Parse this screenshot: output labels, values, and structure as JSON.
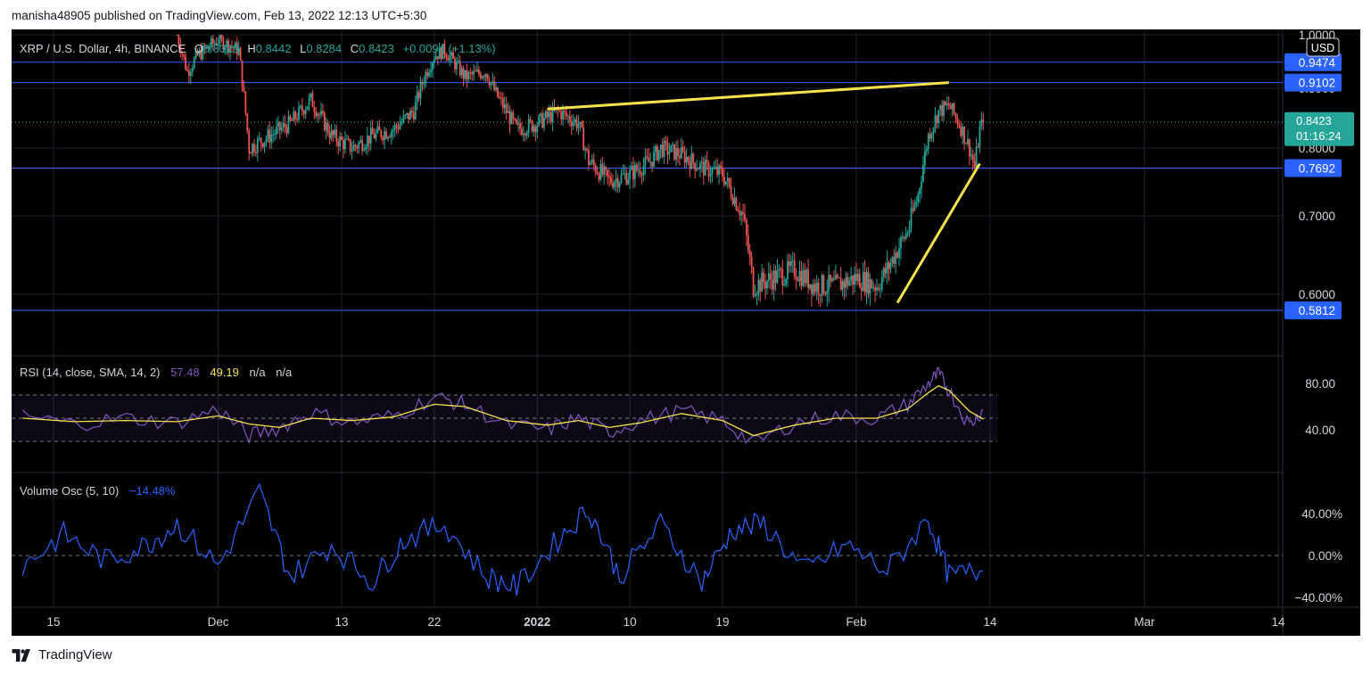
{
  "header": {
    "published_line": "manisha48905 published on TradingView.com, Feb 13, 2022 12:13 UTC+5:30"
  },
  "footer": {
    "brand": "TradingView"
  },
  "colors": {
    "background": "#000000",
    "up": "#26a69a",
    "down": "#ef5350",
    "level": "#2962ff",
    "trendline": "#f7e24b",
    "rsi": "#7e57c2",
    "rsi_ma": "#f7e24b",
    "volosc": "#2962ff",
    "axis_text": "#d1d4dc"
  },
  "chart_data": {
    "type": "candlestick",
    "symbol_line": {
      "symbol": "XRP / U.S. Dollar, 4h, BINANCE",
      "o_label": "O",
      "o_value": "0.8329",
      "h_label": "H",
      "h_value": "0.8442",
      "l_label": "L",
      "l_value": "0.8284",
      "c_label": "C",
      "c_value": "0.8423",
      "change": "+0.0094 (+1.13%)"
    },
    "currency_badge": "USD",
    "price_axis": {
      "range": [
        0.555,
        1.0
      ],
      "ticks": [
        {
          "label": "1.0000",
          "value": 1.0
        },
        {
          "label": "0.9000",
          "value": 0.9
        },
        {
          "label": "0.8000",
          "value": 0.8
        },
        {
          "label": "0.7000",
          "value": 0.7
        },
        {
          "label": "0.6000",
          "value": 0.6
        }
      ]
    },
    "horizontal_levels": [
      {
        "label": "0.9474",
        "value": 0.9474
      },
      {
        "label": "0.9102",
        "value": 0.9102
      },
      {
        "label": "0.7692",
        "value": 0.7692
      },
      {
        "label": "0.5812",
        "value": 0.5812
      }
    ],
    "last_price": {
      "label": "0.8423",
      "value": 0.8423,
      "countdown": "01:16:24"
    },
    "x_axis": {
      "range": [
        "2021-11-12",
        "2022-03-14"
      ],
      "ticks": [
        {
          "label": "15",
          "date": "2021-11-15",
          "bold": false
        },
        {
          "label": "Dec",
          "date": "2021-12-01",
          "bold": false
        },
        {
          "label": "13",
          "date": "2021-12-13",
          "bold": false
        },
        {
          "label": "22",
          "date": "2021-12-22",
          "bold": false
        },
        {
          "label": "2022",
          "date": "2022-01-01",
          "bold": true
        },
        {
          "label": "10",
          "date": "2022-01-10",
          "bold": false
        },
        {
          "label": "19",
          "date": "2022-01-19",
          "bold": false
        },
        {
          "label": "Feb",
          "date": "2022-02-01",
          "bold": false
        },
        {
          "label": "14",
          "date": "2022-02-14",
          "bold": false
        },
        {
          "label": "Mar",
          "date": "2022-03-01",
          "bold": false
        },
        {
          "label": "14",
          "date": "2022-03-14",
          "bold": false
        }
      ]
    },
    "price_path": [
      [
        "2021-11-12",
        1.0
      ],
      [
        "2021-11-27",
        1.0
      ],
      [
        "2021-11-28",
        0.93
      ],
      [
        "2021-11-29",
        0.96
      ],
      [
        "2021-12-01",
        0.99
      ],
      [
        "2021-12-03",
        0.97
      ],
      [
        "2021-12-04",
        0.8
      ],
      [
        "2021-12-06",
        0.82
      ],
      [
        "2021-12-08",
        0.84
      ],
      [
        "2021-12-10",
        0.88
      ],
      [
        "2021-12-12",
        0.82
      ],
      [
        "2021-12-14",
        0.8
      ],
      [
        "2021-12-16",
        0.82
      ],
      [
        "2021-12-18",
        0.83
      ],
      [
        "2021-12-20",
        0.86
      ],
      [
        "2021-12-21",
        0.92
      ],
      [
        "2021-12-22",
        0.96
      ],
      [
        "2021-12-23",
        0.97
      ],
      [
        "2021-12-25",
        0.92
      ],
      [
        "2021-12-27",
        0.93
      ],
      [
        "2021-12-28",
        0.89
      ],
      [
        "2021-12-30",
        0.83
      ],
      [
        "2022-01-01",
        0.84
      ],
      [
        "2022-01-03",
        0.86
      ],
      [
        "2022-01-05",
        0.84
      ],
      [
        "2022-01-06",
        0.78
      ],
      [
        "2022-01-08",
        0.75
      ],
      [
        "2022-01-10",
        0.76
      ],
      [
        "2022-01-12",
        0.78
      ],
      [
        "2022-01-13",
        0.8
      ],
      [
        "2022-01-15",
        0.79
      ],
      [
        "2022-01-17",
        0.77
      ],
      [
        "2022-01-19",
        0.76
      ],
      [
        "2022-01-21",
        0.7
      ],
      [
        "2022-01-22",
        0.61
      ],
      [
        "2022-01-24",
        0.62
      ],
      [
        "2022-01-26",
        0.63
      ],
      [
        "2022-01-28",
        0.61
      ],
      [
        "2022-01-30",
        0.61
      ],
      [
        "2022-02-01",
        0.62
      ],
      [
        "2022-02-03",
        0.61
      ],
      [
        "2022-02-04",
        0.63
      ],
      [
        "2022-02-06",
        0.68
      ],
      [
        "2022-02-07",
        0.73
      ],
      [
        "2022-02-08",
        0.82
      ],
      [
        "2022-02-09",
        0.86
      ],
      [
        "2022-02-10",
        0.87
      ],
      [
        "2022-02-11",
        0.84
      ],
      [
        "2022-02-12",
        0.8
      ],
      [
        "2022-02-12 12:00",
        0.77
      ],
      [
        "2022-02-13",
        0.83
      ],
      [
        "2022-02-13 08:00",
        0.8423
      ]
    ],
    "trendlines": [
      {
        "from": [
          "2022-01-02",
          0.864
        ],
        "to": [
          "2022-02-10",
          0.9102
        ]
      },
      {
        "from": [
          "2022-02-05",
          0.59
        ],
        "to": [
          "2022-02-13",
          0.776
        ]
      }
    ],
    "indicators": [
      {
        "name": "RSI",
        "legend": "RSI (14, close, SMA, 14, 2)",
        "values_text": [
          {
            "text": "57.48",
            "color": "#7e57c2"
          },
          {
            "text": "49.19",
            "color": "#f7e24b"
          },
          {
            "text": "n/a",
            "color": "#d1d4dc"
          },
          {
            "text": "n/a",
            "color": "#d1d4dc"
          }
        ],
        "range": [
          15,
          100
        ],
        "bands": [
          30,
          50,
          70
        ],
        "ticks": [
          {
            "label": "80.00",
            "value": 80
          },
          {
            "label": "40.00",
            "value": 40
          }
        ],
        "rsi_path": [
          [
            "2021-11-12",
            52
          ],
          [
            "2021-11-17",
            45
          ],
          [
            "2021-11-22",
            50
          ],
          [
            "2021-11-27",
            46
          ],
          [
            "2021-12-01",
            58
          ],
          [
            "2021-12-04",
            35
          ],
          [
            "2021-12-07",
            42
          ],
          [
            "2021-12-10",
            55
          ],
          [
            "2021-12-14",
            46
          ],
          [
            "2021-12-18",
            52
          ],
          [
            "2021-12-22",
            68
          ],
          [
            "2021-12-25",
            62
          ],
          [
            "2021-12-29",
            44
          ],
          [
            "2022-01-02",
            40
          ],
          [
            "2022-01-05",
            50
          ],
          [
            "2022-01-08",
            38
          ],
          [
            "2022-01-11",
            48
          ],
          [
            "2022-01-15",
            56
          ],
          [
            "2022-01-19",
            48
          ],
          [
            "2022-01-22",
            28
          ],
          [
            "2022-01-26",
            46
          ],
          [
            "2022-01-30",
            52
          ],
          [
            "2022-02-03",
            50
          ],
          [
            "2022-02-06",
            62
          ],
          [
            "2022-02-08",
            80
          ],
          [
            "2022-02-09",
            88
          ],
          [
            "2022-02-10",
            74
          ],
          [
            "2022-02-12",
            44
          ],
          [
            "2022-02-13 08:00",
            57.48
          ]
        ],
        "ma_path": [
          [
            "2021-11-12",
            50
          ],
          [
            "2021-11-17",
            47
          ],
          [
            "2021-11-22",
            48
          ],
          [
            "2021-11-27",
            47
          ],
          [
            "2021-12-01",
            52
          ],
          [
            "2021-12-04",
            45
          ],
          [
            "2021-12-07",
            42
          ],
          [
            "2021-12-10",
            50
          ],
          [
            "2021-12-14",
            48
          ],
          [
            "2021-12-18",
            51
          ],
          [
            "2021-12-22",
            62
          ],
          [
            "2021-12-25",
            60
          ],
          [
            "2021-12-29",
            48
          ],
          [
            "2022-01-02",
            44
          ],
          [
            "2022-01-05",
            48
          ],
          [
            "2022-01-08",
            42
          ],
          [
            "2022-01-11",
            46
          ],
          [
            "2022-01-15",
            54
          ],
          [
            "2022-01-19",
            48
          ],
          [
            "2022-01-22",
            35
          ],
          [
            "2022-01-26",
            44
          ],
          [
            "2022-01-30",
            50
          ],
          [
            "2022-02-03",
            50
          ],
          [
            "2022-02-06",
            58
          ],
          [
            "2022-02-08",
            72
          ],
          [
            "2022-02-09",
            78
          ],
          [
            "2022-02-10",
            74
          ],
          [
            "2022-02-12",
            56
          ],
          [
            "2022-02-13 08:00",
            49.19
          ]
        ]
      },
      {
        "name": "Volume Osc",
        "legend": "Volume Osc (5, 10)",
        "values_text": [
          {
            "text": "−14.48%",
            "color": "#2962ff"
          }
        ],
        "range": [
          -45,
          60
        ],
        "zero_line": 0,
        "ticks": [
          {
            "label": "40.00%",
            "value": 40
          },
          {
            "label": "0.00%",
            "value": 0
          },
          {
            "label": "−40.00%",
            "value": -40
          }
        ],
        "osc_path": [
          [
            "2021-11-12",
            -10
          ],
          [
            "2021-11-16",
            20
          ],
          [
            "2021-11-20",
            -5
          ],
          [
            "2021-11-24",
            10
          ],
          [
            "2021-11-27",
            30
          ],
          [
            "2021-12-01",
            -10
          ],
          [
            "2021-12-05",
            60
          ],
          [
            "2021-12-08",
            -20
          ],
          [
            "2021-12-12",
            10
          ],
          [
            "2021-12-16",
            -25
          ],
          [
            "2021-12-19",
            15
          ],
          [
            "2021-12-23",
            30
          ],
          [
            "2021-12-27",
            -20
          ],
          [
            "2021-12-30",
            -30
          ],
          [
            "2022-01-03",
            15
          ],
          [
            "2022-01-06",
            45
          ],
          [
            "2022-01-09",
            -20
          ],
          [
            "2022-01-13",
            30
          ],
          [
            "2022-01-17",
            -25
          ],
          [
            "2022-01-20",
            25
          ],
          [
            "2022-01-23",
            30
          ],
          [
            "2022-01-27",
            -15
          ],
          [
            "2022-01-31",
            10
          ],
          [
            "2022-02-04",
            -15
          ],
          [
            "2022-02-08",
            35
          ],
          [
            "2022-02-10",
            -20
          ],
          [
            "2022-02-13 08:00",
            -14.48
          ]
        ]
      }
    ]
  }
}
